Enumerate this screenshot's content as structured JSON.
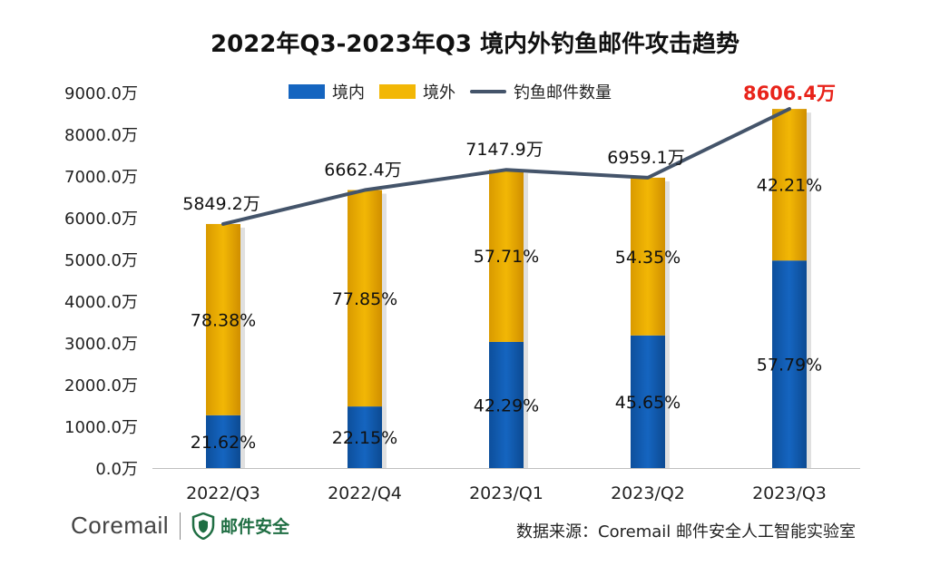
{
  "title": "2022年Q3-2023年Q3 境内外钓鱼邮件攻击趋势",
  "legend": {
    "domestic": "境内",
    "foreign": "境外",
    "total": "钓鱼邮件数量"
  },
  "colors": {
    "domestic": "#1565C0",
    "foreign": "#F2B705",
    "line": "#44546A",
    "highlight": "#E8231A"
  },
  "chart_data": {
    "type": "bar",
    "stacked": true,
    "categories": [
      "2022/Q3",
      "2022/Q4",
      "2023/Q1",
      "2023/Q2",
      "2023/Q3"
    ],
    "series": [
      {
        "name": "境内",
        "values": [
          1264.6,
          1475.7,
          3022.8,
          3177.8,
          4973.6
        ],
        "labels": [
          "21.62%",
          "22.15%",
          "42.29%",
          "45.65%",
          "57.79%"
        ]
      },
      {
        "name": "境外",
        "values": [
          4584.6,
          5186.7,
          4125.1,
          3781.3,
          3632.8
        ],
        "labels": [
          "78.38%",
          "77.85%",
          "57.71%",
          "54.35%",
          "42.21%"
        ]
      },
      {
        "name": "钓鱼邮件数量",
        "type": "line",
        "values": [
          5849.2,
          6662.4,
          7147.9,
          6959.1,
          8606.4
        ],
        "labels": [
          "5849.2万",
          "6662.4万",
          "7147.9万",
          "6959.1万",
          "8606.4万"
        ]
      }
    ],
    "yticks": [
      "0.0万",
      "1000.0万",
      "2000.0万",
      "3000.0万",
      "4000.0万",
      "5000.0万",
      "6000.0万",
      "7000.0万",
      "8000.0万",
      "9000.0万"
    ],
    "ylim": [
      0,
      9000
    ],
    "grid": false,
    "legend_position": "top"
  },
  "footer": {
    "brand": "Coremail",
    "sub_brand": "邮件安全",
    "source": "数据来源：Coremail 邮件安全人工智能实验室"
  }
}
